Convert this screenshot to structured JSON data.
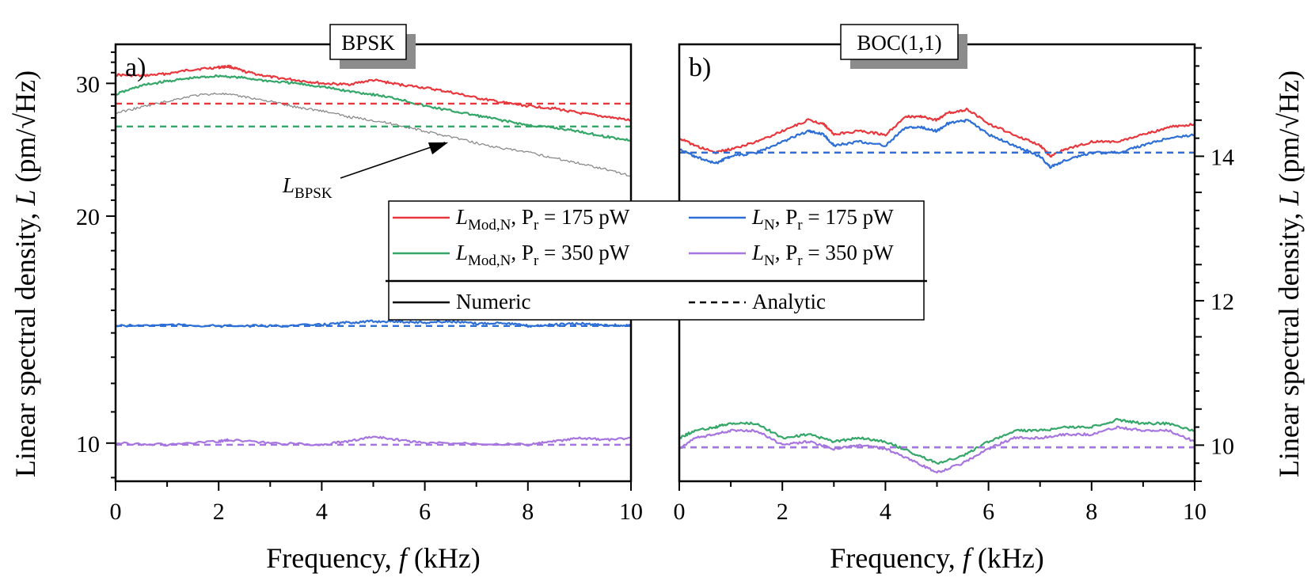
{
  "chart_data": [
    {
      "type": "line",
      "panel_label": "a)",
      "title": "BPSK",
      "xlabel_text": "Frequency, ",
      "xlabel_var": "f",
      "xlabel_unit": " (kHz)",
      "ylabel_text": "Linear spectral density, ",
      "ylabel_var": "L",
      "ylabel_unit": " (pm/√Hz)",
      "xlim": [
        0,
        10
      ],
      "ylim": [
        8.9,
        33.8
      ],
      "y_scale": "log",
      "x_ticks": [
        0,
        2,
        4,
        6,
        8,
        10
      ],
      "x_tick_labels": [
        "0",
        "2",
        "4",
        "6",
        "8",
        "10"
      ],
      "y_ticks": [
        10,
        20,
        30
      ],
      "y_tick_labels": [
        "10",
        "20",
        "30"
      ],
      "grid": false,
      "series": [
        {
          "key": "mod175",
          "style": "solid",
          "color": "#e8383d",
          "x": [
            0,
            0.5,
            1,
            1.5,
            2,
            2.2,
            2.5,
            3,
            3.5,
            4,
            4.5,
            5,
            5.5,
            6,
            6.5,
            7,
            7.5,
            8,
            8.5,
            9,
            9.5,
            10
          ],
          "y": [
            30.8,
            30.7,
            30.9,
            31.3,
            31.5,
            31.6,
            31.1,
            30.6,
            30.3,
            30.0,
            29.9,
            30.3,
            29.9,
            29.6,
            29.2,
            28.7,
            28.3,
            28.0,
            27.8,
            27.4,
            27.1,
            26.8
          ]
        },
        {
          "key": "mod350",
          "style": "solid",
          "color": "#34a768",
          "x": [
            0,
            0.5,
            1,
            1.5,
            2,
            2.5,
            3,
            3.5,
            4,
            4.5,
            5,
            5.5,
            6,
            6.5,
            7,
            7.5,
            8,
            8.5,
            9,
            9.5,
            10
          ],
          "y": [
            29.0,
            29.8,
            30.2,
            30.5,
            30.7,
            30.5,
            30.2,
            30.0,
            29.7,
            29.3,
            29.0,
            28.6,
            28.0,
            27.6,
            27.2,
            26.8,
            26.4,
            26.2,
            25.9,
            25.5,
            25.2
          ]
        },
        {
          "key": "bpsk",
          "style": "solid-thin",
          "color": "#8a8a8a",
          "x": [
            0,
            0.5,
            1,
            1.5,
            2,
            2.5,
            3,
            3.5,
            4,
            4.5,
            5,
            5.5,
            6,
            6.5,
            7,
            7.5,
            8,
            8.5,
            9,
            9.5,
            10
          ],
          "y": [
            27.4,
            27.9,
            28.4,
            28.9,
            29.1,
            28.8,
            28.4,
            27.9,
            27.6,
            27.1,
            26.8,
            26.4,
            25.9,
            25.5,
            25.0,
            24.6,
            24.3,
            23.9,
            23.5,
            23.1,
            22.6
          ]
        },
        {
          "key": "n175",
          "style": "solid",
          "color": "#2e6fd6",
          "x": [
            0,
            1,
            2,
            3,
            4,
            4.5,
            5,
            5.5,
            6,
            6.5,
            7,
            7.5,
            8,
            8.5,
            9,
            9.5,
            10
          ],
          "y": [
            14.3,
            14.35,
            14.3,
            14.3,
            14.35,
            14.45,
            14.5,
            14.5,
            14.45,
            14.5,
            14.4,
            14.45,
            14.3,
            14.35,
            14.4,
            14.35,
            14.3
          ]
        },
        {
          "key": "n350",
          "style": "solid",
          "color": "#a775e0",
          "x": [
            0,
            1,
            2,
            2.2,
            3,
            4,
            4.5,
            5,
            5.5,
            6,
            7,
            8,
            8.5,
            9,
            9.5,
            10
          ],
          "y": [
            10.0,
            9.95,
            10.05,
            10.1,
            10.0,
            9.95,
            10.05,
            10.2,
            10.1,
            10.0,
            10.0,
            9.95,
            10.05,
            10.15,
            10.1,
            10.15
          ]
        },
        {
          "key": "a175",
          "style": "dashed",
          "color": "#e8383d",
          "x": [
            0,
            10
          ],
          "y": [
            28.2,
            28.2
          ]
        },
        {
          "key": "a350",
          "style": "dashed",
          "color": "#34a768",
          "x": [
            0,
            10
          ],
          "y": [
            26.3,
            26.3
          ]
        },
        {
          "key": "an175",
          "style": "dashed",
          "color": "#2e6fd6",
          "x": [
            0,
            10
          ],
          "y": [
            14.3,
            14.3
          ]
        },
        {
          "key": "an350",
          "style": "dashed",
          "color": "#a775e0",
          "x": [
            0,
            10
          ],
          "y": [
            9.95,
            9.95
          ]
        }
      ],
      "annotation": {
        "text_main": "L",
        "text_sub": "BPSK",
        "arrow_to": [
          6.7,
          25.3
        ]
      }
    },
    {
      "type": "line",
      "panel_label": "b)",
      "title": "BOC(1,1)",
      "xlabel_text": "Frequency, ",
      "xlabel_var": "f",
      "xlabel_unit": " (kHz)",
      "ylabel_text": "Linear spectral density, ",
      "ylabel_var": "L",
      "ylabel_unit": " (pm/√Hz)",
      "xlim": [
        0,
        10
      ],
      "ylim": [
        9.5,
        15.55
      ],
      "y_scale": "linear",
      "y_axis_side": "right",
      "x_ticks": [
        0,
        2,
        4,
        6,
        8,
        10
      ],
      "x_tick_labels": [
        "0",
        "2",
        "4",
        "6",
        "8",
        "10"
      ],
      "y_ticks": [
        10,
        12,
        14
      ],
      "y_tick_labels": [
        "10",
        "12",
        "14"
      ],
      "grid": false,
      "series": [
        {
          "key": "mod175",
          "style": "solid",
          "color": "#e8383d",
          "x": [
            0,
            0.3,
            0.7,
            1,
            1.5,
            2,
            2.5,
            2.8,
            3,
            3.5,
            4,
            4.4,
            4.7,
            5,
            5.2,
            5.6,
            6,
            6.5,
            7,
            7.2,
            7.5,
            8,
            8.5,
            9,
            9.5,
            10
          ],
          "y": [
            14.25,
            14.15,
            14.05,
            14.1,
            14.2,
            14.35,
            14.5,
            14.45,
            14.3,
            14.35,
            14.3,
            14.55,
            14.55,
            14.5,
            14.6,
            14.65,
            14.45,
            14.3,
            14.15,
            14.0,
            14.1,
            14.2,
            14.2,
            14.3,
            14.4,
            14.45
          ]
        },
        {
          "key": "n175",
          "style": "solid",
          "color": "#2e6fd6",
          "x": [
            0,
            0.3,
            0.7,
            1,
            1.5,
            2,
            2.5,
            2.8,
            3,
            3.5,
            4,
            4.4,
            4.7,
            5,
            5.2,
            5.6,
            6,
            6.5,
            7,
            7.2,
            7.5,
            8,
            8.5,
            9,
            9.5,
            10
          ],
          "y": [
            14.1,
            14.0,
            13.9,
            14.0,
            14.05,
            14.2,
            14.35,
            14.3,
            14.15,
            14.2,
            14.15,
            14.4,
            14.4,
            14.35,
            14.45,
            14.5,
            14.3,
            14.15,
            14.0,
            13.85,
            13.95,
            14.05,
            14.05,
            14.15,
            14.25,
            14.3
          ]
        },
        {
          "key": "mod350",
          "style": "solid",
          "color": "#34a768",
          "x": [
            0,
            0.3,
            0.7,
            1,
            1.5,
            2,
            2.5,
            3,
            3.5,
            4,
            4.5,
            5,
            5.5,
            6,
            6.5,
            7,
            7.5,
            8,
            8.5,
            9,
            9.5,
            10
          ],
          "y": [
            10.1,
            10.2,
            10.25,
            10.3,
            10.3,
            10.1,
            10.15,
            10.05,
            10.1,
            10.05,
            9.9,
            9.75,
            9.85,
            10.05,
            10.2,
            10.2,
            10.25,
            10.25,
            10.35,
            10.3,
            10.3,
            10.2
          ]
        },
        {
          "key": "n350",
          "style": "solid",
          "color": "#a775e0",
          "x": [
            0,
            0.3,
            0.7,
            1,
            1.5,
            2,
            2.5,
            3,
            3.5,
            4,
            4.5,
            5,
            5.5,
            6,
            6.5,
            7,
            7.5,
            8,
            8.5,
            9,
            9.5,
            10
          ],
          "y": [
            9.95,
            10.1,
            10.15,
            10.2,
            10.2,
            10.0,
            10.05,
            9.95,
            10.0,
            9.95,
            9.8,
            9.62,
            9.75,
            9.95,
            10.1,
            10.1,
            10.15,
            10.15,
            10.25,
            10.2,
            10.2,
            10.05
          ]
        },
        {
          "key": "a175",
          "style": "dashed",
          "color": "#e8383d",
          "x": [
            0,
            10
          ],
          "y": [
            14.05,
            14.05
          ]
        },
        {
          "key": "an175",
          "style": "dashed",
          "color": "#2e6fd6",
          "x": [
            0,
            10
          ],
          "y": [
            14.05,
            14.05
          ]
        },
        {
          "key": "a350",
          "style": "dashed",
          "color": "#34a768",
          "x": [
            0,
            10
          ],
          "y": [
            9.97,
            9.97
          ]
        },
        {
          "key": "an350",
          "style": "dashed",
          "color": "#a775e0",
          "x": [
            0,
            10
          ],
          "y": [
            9.97,
            9.97
          ]
        }
      ]
    }
  ],
  "legend": {
    "placement": "center",
    "entries": [
      {
        "key": "mod175",
        "color": "#e8383d",
        "style": "solid",
        "var": "L",
        "sub": "Mod,N",
        "rest": ", P",
        "rsub": "r",
        "tail": " = 175 pW"
      },
      {
        "key": "n175",
        "color": "#2e6fd6",
        "style": "solid",
        "var": "L",
        "sub": "N",
        "rest": ", P",
        "rsub": "r",
        "tail": " = 175 pW"
      },
      {
        "key": "mod350",
        "color": "#34a768",
        "style": "solid",
        "var": "L",
        "sub": "Mod,N",
        "rest": ", P",
        "rsub": "r",
        "tail": " = 350 pW"
      },
      {
        "key": "n350",
        "color": "#a775e0",
        "style": "solid",
        "var": "L",
        "sub": "N",
        "rest": ", P",
        "rsub": "r",
        "tail": " = 350 pW"
      }
    ],
    "styles": [
      {
        "key": "numeric",
        "style": "solid",
        "color": "#000000",
        "label": "Numeric"
      },
      {
        "key": "analytic",
        "style": "dashed",
        "color": "#000000",
        "label": "Analytic"
      }
    ]
  }
}
